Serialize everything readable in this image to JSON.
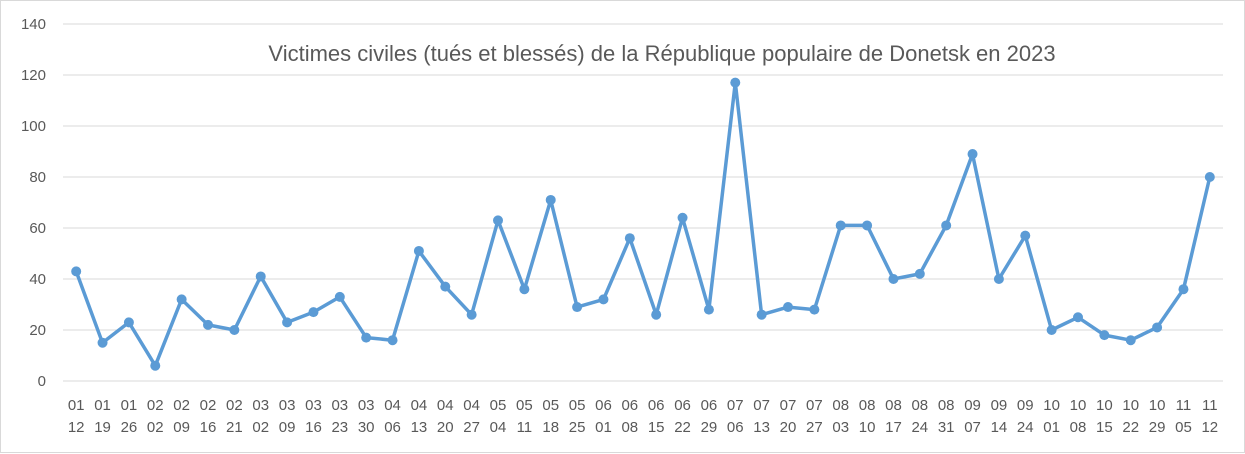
{
  "chart_data": {
    "type": "line",
    "title": "Victimes civiles (tués et blessés) de la République populaire de Donetsk en 2023",
    "xlabel": "",
    "ylabel": "",
    "ylim": [
      0,
      140
    ],
    "yticks": [
      0,
      20,
      40,
      60,
      80,
      100,
      120,
      140
    ],
    "grid": true,
    "legend": "none",
    "colors": {
      "series": "#5b9bd5",
      "grid": "#d9d9d9",
      "axis": "#d9d9d9",
      "text": "#595959"
    },
    "categories": [
      [
        "01",
        "12"
      ],
      [
        "01",
        "19"
      ],
      [
        "01",
        "26"
      ],
      [
        "02",
        "02"
      ],
      [
        "02",
        "09"
      ],
      [
        "02",
        "16"
      ],
      [
        "02",
        "21"
      ],
      [
        "03",
        "02"
      ],
      [
        "03",
        "09"
      ],
      [
        "03",
        "16"
      ],
      [
        "03",
        "23"
      ],
      [
        "03",
        "30"
      ],
      [
        "04",
        "06"
      ],
      [
        "04",
        "13"
      ],
      [
        "04",
        "20"
      ],
      [
        "04",
        "27"
      ],
      [
        "05",
        "04"
      ],
      [
        "05",
        "11"
      ],
      [
        "05",
        "18"
      ],
      [
        "05",
        "25"
      ],
      [
        "06",
        "01"
      ],
      [
        "06",
        "08"
      ],
      [
        "06",
        "15"
      ],
      [
        "06",
        "22"
      ],
      [
        "06",
        "29"
      ],
      [
        "07",
        "06"
      ],
      [
        "07",
        "13"
      ],
      [
        "07",
        "20"
      ],
      [
        "07",
        "27"
      ],
      [
        "08",
        "03"
      ],
      [
        "08",
        "10"
      ],
      [
        "08",
        "17"
      ],
      [
        "08",
        "24"
      ],
      [
        "08",
        "31"
      ],
      [
        "09",
        "07"
      ],
      [
        "09",
        "14"
      ],
      [
        "09",
        "24"
      ],
      [
        "10",
        "01"
      ],
      [
        "10",
        "08"
      ],
      [
        "10",
        "15"
      ],
      [
        "10",
        "22"
      ],
      [
        "10",
        "29"
      ],
      [
        "11",
        "05"
      ],
      [
        "11",
        "12"
      ]
    ],
    "series": [
      {
        "values": [
          43,
          15,
          23,
          6,
          32,
          22,
          20,
          41,
          23,
          27,
          33,
          17,
          16,
          51,
          37,
          26,
          63,
          36,
          71,
          29,
          32,
          56,
          26,
          64,
          28,
          117,
          26,
          29,
          28,
          61,
          61,
          40,
          42,
          61,
          89,
          40,
          57,
          20,
          25,
          18,
          16,
          21,
          36,
          80
        ]
      }
    ]
  }
}
